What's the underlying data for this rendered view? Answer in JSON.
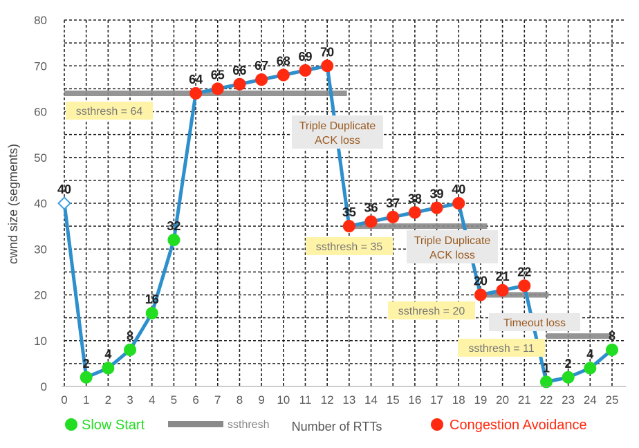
{
  "chart_data": {
    "type": "line",
    "xlabel": "Number of RTTs",
    "ylabel": "cwnd size (segments)",
    "xlim": [
      0,
      25
    ],
    "ylim": [
      0,
      80
    ],
    "x_ticks": [
      0,
      1,
      2,
      3,
      4,
      5,
      6,
      7,
      8,
      9,
      10,
      11,
      12,
      13,
      14,
      15,
      16,
      17,
      18,
      19,
      20,
      21,
      22,
      23,
      24,
      25
    ],
    "y_ticks": [
      0,
      10,
      20,
      30,
      40,
      50,
      60,
      70,
      80
    ],
    "grid": true,
    "series": [
      {
        "x": [
          0,
          1,
          2,
          3,
          4,
          5,
          6,
          7,
          8,
          9,
          10,
          11,
          12,
          13,
          14,
          15,
          16,
          17,
          18,
          19,
          20,
          21,
          22,
          23,
          24,
          25
        ],
        "y": [
          40,
          2,
          4,
          8,
          16,
          32,
          64,
          65,
          66,
          67,
          68,
          69,
          70,
          35,
          36,
          37,
          38,
          39,
          40,
          20,
          21,
          22,
          1,
          2,
          4,
          8
        ],
        "phase": [
          "start",
          "slow",
          "slow",
          "slow",
          "slow",
          "slow",
          "ca",
          "ca",
          "ca",
          "ca",
          "ca",
          "ca",
          "ca",
          "ca",
          "ca",
          "ca",
          "ca",
          "ca",
          "ca",
          "ca",
          "ca",
          "ca",
          "slow",
          "slow",
          "slow",
          "slow"
        ],
        "labels": [
          "40",
          "2",
          "4",
          "8",
          "16",
          "32",
          "64",
          "65",
          "66",
          "67",
          "68",
          "69",
          "70",
          "35",
          "36",
          "37",
          "38",
          "39",
          "40",
          "20",
          "21",
          "22",
          "1",
          "2",
          "4",
          "8"
        ]
      }
    ],
    "ssthresh_segments": [
      {
        "x0": 0,
        "x1": 12.9,
        "y": 64,
        "label": "ssthresh = 64"
      },
      {
        "x0": 13,
        "x1": 19.3,
        "y": 35,
        "label": "ssthresh = 35"
      },
      {
        "x0": 19,
        "x1": 22.1,
        "y": 20,
        "label": "ssthresh = 20"
      },
      {
        "x0": 22,
        "x1": 25,
        "y": 11,
        "label": "ssthresh = 11"
      }
    ],
    "annotations": [
      {
        "text": "Triple Duplicate\nACK loss",
        "at": "x≈12.2, y≈58"
      },
      {
        "text": "Triple Duplicate\nACK loss",
        "at": "x≈18, y≈29"
      },
      {
        "text": "Timeout loss",
        "at": "x≈21.6, y≈14"
      }
    ],
    "legend": {
      "placement": "bottom",
      "items": [
        "Slow Start",
        "ssthresh",
        "Congestion Avoidance"
      ],
      "slow_start_color": "#22dd22",
      "ssthresh_color": "#8a8a8a",
      "congestion_avoidance_color": "#ff2a10"
    },
    "line_color": "#2d8fcc",
    "start_marker_color": "#3b9ee0"
  }
}
